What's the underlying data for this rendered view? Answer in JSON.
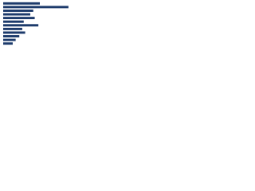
{
  "chart_data": {
    "type": "bar",
    "orientation": "horizontal",
    "categories": [
      null,
      null,
      null,
      null,
      null,
      null,
      null,
      null,
      null,
      null,
      null,
      null
    ],
    "values": [
      50,
      89,
      41,
      37,
      43,
      28,
      48,
      26,
      30,
      22,
      17,
      13
    ],
    "color": "#1c3a6b",
    "xlim": [
      0,
      100
    ]
  }
}
